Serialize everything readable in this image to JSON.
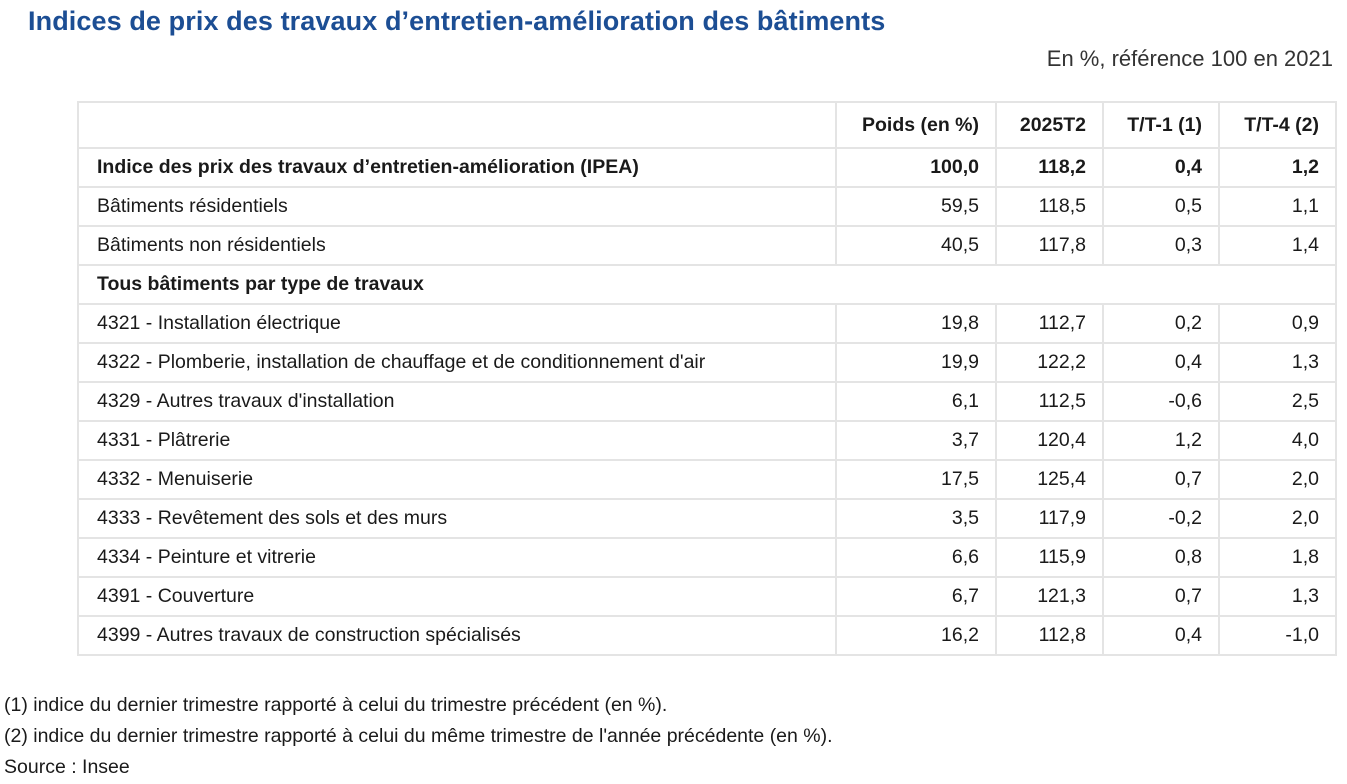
{
  "title": "Indices de prix des travaux d’entretien-amélioration des bâtiments",
  "subtitle": "En %, référence 100 en 2021",
  "table": {
    "headers": [
      "",
      "Poids (en %)",
      "2025T2",
      "T/T-1 (1)",
      "T/T-4 (2)"
    ],
    "rows": [
      {
        "label": "Indice des prix des travaux d’entretien-amélioration (IPEA)",
        "poids": "100,0",
        "t2025": "118,2",
        "tt1": "0,4",
        "tt4": "1,2"
      },
      {
        "label": "Bâtiments résidentiels",
        "poids": "59,5",
        "t2025": "118,5",
        "tt1": "0,5",
        "tt4": "1,1"
      },
      {
        "label": "Bâtiments non résidentiels",
        "poids": "40,5",
        "t2025": "117,8",
        "tt1": "0,3",
        "tt4": "1,4"
      },
      {
        "label": "Tous bâtiments par type de travaux"
      },
      {
        "label": "4321 - Installation électrique",
        "poids": "19,8",
        "t2025": "112,7",
        "tt1": "0,2",
        "tt4": "0,9"
      },
      {
        "label": "4322 - Plomberie, installation de chauffage et de conditionnement d'air",
        "poids": "19,9",
        "t2025": "122,2",
        "tt1": "0,4",
        "tt4": "1,3"
      },
      {
        "label": "4329 - Autres travaux d'installation",
        "poids": "6,1",
        "t2025": "112,5",
        "tt1": "-0,6",
        "tt4": "2,5"
      },
      {
        "label": "4331 - Plâtrerie",
        "poids": "3,7",
        "t2025": "120,4",
        "tt1": "1,2",
        "tt4": "4,0"
      },
      {
        "label": "4332 - Menuiserie",
        "poids": "17,5",
        "t2025": "125,4",
        "tt1": "0,7",
        "tt4": "2,0"
      },
      {
        "label": "4333 - Revêtement des sols et des murs",
        "poids": "3,5",
        "t2025": "117,9",
        "tt1": "-0,2",
        "tt4": "2,0"
      },
      {
        "label": "4334 - Peinture et vitrerie",
        "poids": "6,6",
        "t2025": "115,9",
        "tt1": "0,8",
        "tt4": "1,8"
      },
      {
        "label": "4391 - Couverture",
        "poids": "6,7",
        "t2025": "121,3",
        "tt1": "0,7",
        "tt4": "1,3"
      },
      {
        "label": "4399 - Autres travaux de construction spécialisés",
        "poids": "16,2",
        "t2025": "112,8",
        "tt1": "0,4",
        "tt4": "-1,0"
      }
    ]
  },
  "notes": {
    "note1": "(1) indice du dernier trimestre rapporté à celui du trimestre précédent (en %).",
    "note2": "(2) indice du dernier trimestre rapporté à celui du même trimestre de l'année précédente (en %).",
    "source": "Source : Insee"
  }
}
